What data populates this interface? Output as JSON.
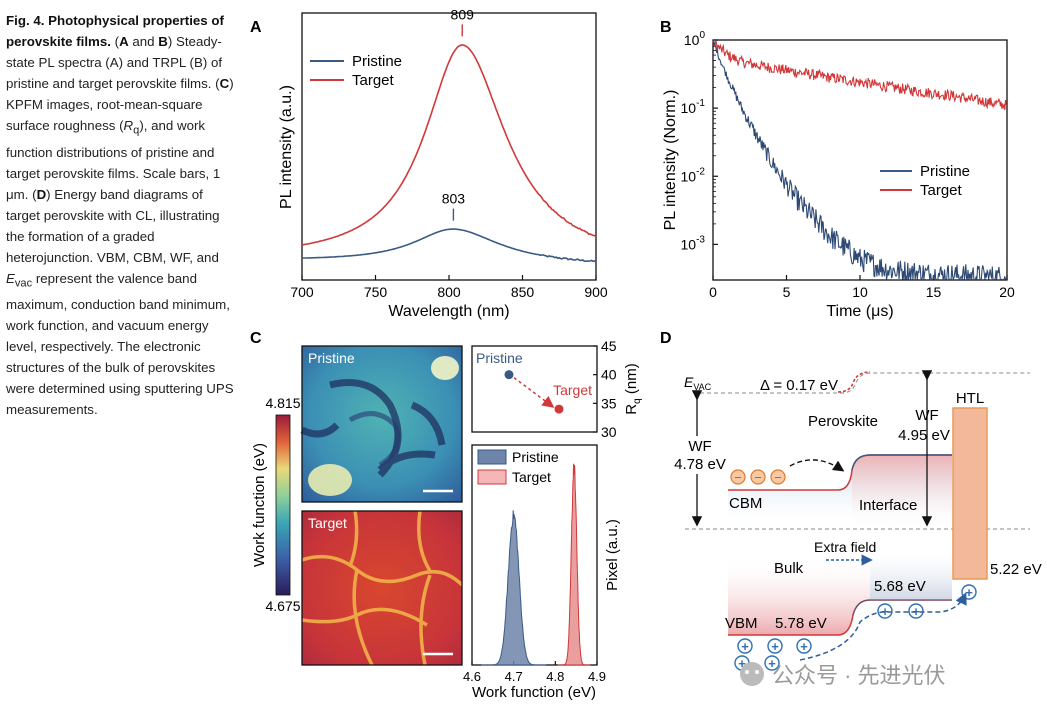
{
  "caption": {
    "lead": "Fig. 4. Photophysical properties of perovskite films.",
    "body_html": " (<b>A</b> and <b>B</b>) Steady-state PL spectra (A) and TRPL (B) of pristine and target perovskite films. (<b>C</b>) KPFM images, root-mean-square surface roughness (<i>R</i><sub>q</sub>), and work function distributions of pristine and target perovskite films. Scale bars, 1 μm. (<b>D</b>) Energy band diagrams of target perovskite with CL, illustrating the formation of a graded heterojunction. VBM, CBM, WF, and <i>E</i><sub>vac</sub> represent the valence band maximum, conduction band minimum, work function, and vacuum energy level, respectively. The electronic structures of the bulk of perovskites were determined using sputtering UPS measurements."
  },
  "colors": {
    "pristine": "#3a5a86",
    "target": "#d0393a",
    "text": "#111111"
  },
  "chart_data": [
    {
      "panel": "A",
      "type": "line",
      "xlabel": "Wavelength (nm)",
      "ylabel": "PL intensity (a.u.)",
      "xlim": [
        700,
        900
      ],
      "xticks": [
        700,
        750,
        800,
        850,
        900
      ],
      "series": [
        {
          "name": "Pristine",
          "peak_x": 803,
          "peak_label": "803",
          "amplitude": 0.13,
          "baseline": 0.07,
          "hwhm_left": 33,
          "hwhm_right": 38
        },
        {
          "name": "Target",
          "peak_x": 809,
          "peak_label": "809",
          "amplitude": 0.82,
          "baseline": 0.07,
          "hwhm_left": 31,
          "hwhm_right": 36
        }
      ]
    },
    {
      "panel": "B",
      "type": "line",
      "xlabel": "Time (μs)",
      "ylabel": "PL intensity (Norm.)",
      "xlim": [
        0,
        20
      ],
      "xticks": [
        0,
        5,
        10,
        15,
        20
      ],
      "yscale": "log",
      "ylim": [
        0.0003,
        1
      ],
      "ytick_bases": [
        "10",
        "10",
        "10",
        "10"
      ],
      "ytick_exps": [
        "0",
        "-1",
        "-2",
        "-3"
      ],
      "series": [
        {
          "name": "Pristine",
          "points": [
            [
              0,
              1
            ],
            [
              0.5,
              0.5
            ],
            [
              1,
              0.28
            ],
            [
              2,
              0.095
            ],
            [
              3,
              0.038
            ],
            [
              4,
              0.016
            ],
            [
              5,
              0.0075
            ],
            [
              6,
              0.0038
            ],
            [
              8,
              0.0013
            ],
            [
              10,
              0.0006
            ],
            [
              12,
              0.00042
            ],
            [
              15,
              0.00036
            ],
            [
              20,
              0.00033
            ]
          ]
        },
        {
          "name": "Target",
          "points": [
            [
              0,
              0.92
            ],
            [
              1,
              0.6
            ],
            [
              2,
              0.47
            ],
            [
              4,
              0.39
            ],
            [
              6,
              0.33
            ],
            [
              8,
              0.28
            ],
            [
              10,
              0.24
            ],
            [
              12,
              0.205
            ],
            [
              14,
              0.175
            ],
            [
              16,
              0.155
            ],
            [
              18,
              0.13
            ],
            [
              20,
              0.11
            ]
          ]
        }
      ]
    },
    {
      "panel": "C-image",
      "type": "heatmap",
      "colorbar_label": "Work function (eV)",
      "colorbar_max": "4.815",
      "colorbar_min": "4.675",
      "images": [
        "Pristine",
        "Target"
      ]
    },
    {
      "panel": "C-roughness",
      "type": "scatter",
      "ylabel": "Rq (nm)",
      "ylim": [
        30,
        45
      ],
      "yticks": [
        30,
        35,
        40,
        45
      ],
      "points": [
        {
          "name": "Pristine",
          "y": 40
        },
        {
          "name": "Target",
          "y": 34
        }
      ]
    },
    {
      "panel": "C-histogram",
      "type": "area",
      "xlabel": "Work function (eV)",
      "ylabel": "Pixel (a.u.)",
      "xlim": [
        4.6,
        4.9
      ],
      "xticks": [
        4.6,
        4.7,
        4.8,
        4.9
      ],
      "series": [
        {
          "name": "Pristine",
          "center": 4.7,
          "sigma": 0.013,
          "amplitude": 0.68
        },
        {
          "name": "Target",
          "center": 4.845,
          "sigma": 0.0065,
          "amplitude": 0.9
        }
      ]
    }
  ],
  "panel_labels": {
    "a": "A",
    "b": "B",
    "c": "C",
    "d": "D"
  },
  "panel_a": {
    "legend_pristine": "Pristine",
    "legend_target": "Target"
  },
  "panel_b": {
    "legend_pristine": "Pristine",
    "legend_target": "Target"
  },
  "panel_c": {
    "img_pristine_label": "Pristine",
    "img_target_label": "Target",
    "rq_pristine_label": "Pristine",
    "rq_target_label": "Target",
    "hist_legend_pristine": "Pristine",
    "hist_legend_target": "Target"
  },
  "panel_d": {
    "evac_base": "E",
    "evac_sub": "VAC",
    "delta_label": "Δ = 0.17 eV",
    "perovskite_label": "Perovskite",
    "wf_left": "WF",
    "wf_left_value": "4.78 eV",
    "wf_right": "WF",
    "wf_right_value": "4.95 eV",
    "htl_label": "HTL",
    "cbm_label": "CBM",
    "interface_label": "Interface",
    "extra_field_label": "Extra field",
    "bulk_label": "Bulk",
    "vbm_label": "VBM",
    "vbm_value": "5.78 eV",
    "interface_vbm_value": "5.68 eV",
    "htl_value": "5.22 eV",
    "electron_sign": "−",
    "hole_sign": "+"
  },
  "watermark": "公众号 · 先进光伏"
}
